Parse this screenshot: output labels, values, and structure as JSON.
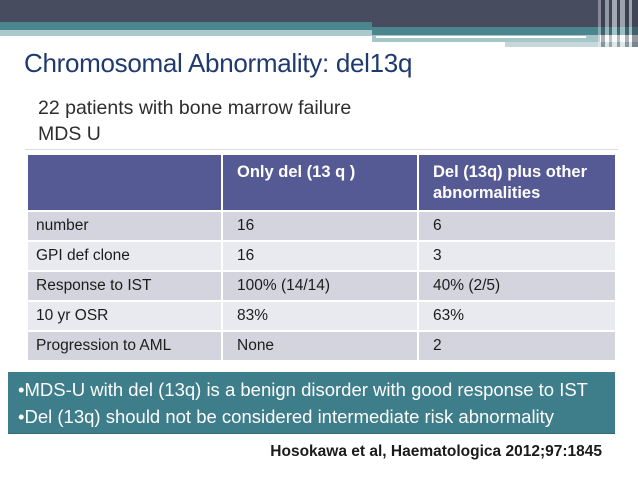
{
  "slide": {
    "title": "Chromosomal Abnormality: del13q",
    "subtitle_line1": "22 patients with bone marrow failure",
    "subtitle_line2": "MDS U",
    "citation": "Hosokawa et al, Haematologica 2012;97:1845"
  },
  "table": {
    "columns": [
      "",
      "Only del (13 q )",
      "Del (13q) plus other abnormalities"
    ],
    "rows": [
      {
        "label": "number",
        "only_del": "16",
        "plus_other": "6"
      },
      {
        "label": "GPI def clone",
        "only_del": "16",
        "plus_other": "3"
      },
      {
        "label": "Response to IST",
        "only_del": "100% (14/14)",
        "plus_other": "40% (2/5)"
      },
      {
        "label": "10 yr OSR",
        "only_del": "83%",
        "plus_other": "63%"
      },
      {
        "label": "Progression to AML",
        "only_del": "None",
        "plus_other": "2"
      }
    ]
  },
  "conclusion_banner": {
    "lines": [
      "•MDS-U with del (13q) is a benign disorder with good response to IST",
      "•Del (13q) should not be considered intermediate risk abnormality"
    ]
  },
  "colors": {
    "top_bar_dark": "#474c5e",
    "accent_teal": "#4b858d",
    "accent_pale_teal": "#abc9cc",
    "title_navy": "#1f3a6e",
    "table_header_bg": "#565a94",
    "table_row_dark": "#d3d4dd",
    "table_row_light": "#e9eaf0",
    "banner_teal": "#3e7d8a"
  }
}
